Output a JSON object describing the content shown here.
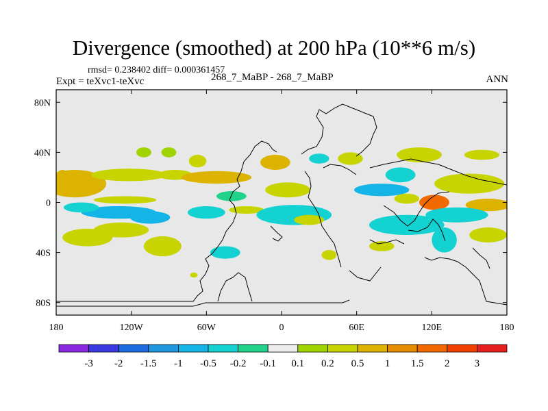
{
  "title": "Divergence (smoothed) at 200 hPa (10**6 m/s)",
  "stats": "rmsd= 0.238402 diff= 0.000361457",
  "expt": "Expt = teXvc1-teXvc",
  "cases": "268_7_MaBP - 268_7_MaBP",
  "season": "ANN",
  "colors": {
    "background": "#e8e8e8",
    "coast": "#000000",
    "palette": [
      "#8a2be2",
      "#3a3ae0",
      "#1e6ae0",
      "#1e96e0",
      "#14b4e6",
      "#14d2d2",
      "#20d28a",
      "#ececec",
      "#a0d400",
      "#c8d400",
      "#dcb400",
      "#e68c00",
      "#f06a00",
      "#f04000",
      "#e61e1e"
    ]
  },
  "chart_data": {
    "type": "contour-map",
    "projection": "cylindrical equidistant",
    "lon_range": [
      -180,
      180
    ],
    "lat_range": [
      -90,
      90
    ],
    "x_ticks": [
      "180",
      "120W",
      "60W",
      "0",
      "60E",
      "120E",
      "180"
    ],
    "x_tick_values": [
      -180,
      -120,
      -60,
      0,
      60,
      120,
      180
    ],
    "y_ticks": [
      "80N",
      "40N",
      "0",
      "40S",
      "80S"
    ],
    "y_tick_values": [
      80,
      40,
      0,
      -40,
      -80
    ],
    "colorbar_labels": [
      "-3",
      "-2",
      "-1.5",
      "-1",
      "-0.5",
      "-0.2",
      "-0.1",
      "0.1",
      "0.2",
      "0.5",
      "1",
      "1.5",
      "2",
      "3"
    ],
    "contour_levels": [
      -3,
      -2,
      -1.5,
      -1,
      -0.5,
      -0.2,
      -0.1,
      0.1,
      0.2,
      0.5,
      1,
      1.5,
      2,
      3
    ],
    "features": [
      {
        "lon": -165,
        "lat": 15,
        "rx": 25,
        "ry": 11,
        "value": 0.9
      },
      {
        "lon": -175,
        "lat": 18,
        "rx": 6,
        "ry": 8,
        "value": 0.6
      },
      {
        "lon": -122,
        "lat": 22,
        "rx": 30,
        "ry": 5,
        "value": 0.25
      },
      {
        "lon": -85,
        "lat": 22,
        "rx": 14,
        "ry": 4,
        "value": 0.3
      },
      {
        "lon": -67,
        "lat": 33,
        "rx": 7,
        "ry": 5,
        "value": 0.3
      },
      {
        "lon": -52,
        "lat": 20,
        "rx": 28,
        "ry": 5,
        "value": 0.55
      },
      {
        "lon": -110,
        "lat": 40,
        "rx": 6,
        "ry": 4,
        "value": 0.15
      },
      {
        "lon": -90,
        "lat": 40,
        "rx": 6,
        "ry": 4,
        "value": 0.15
      },
      {
        "lon": -155,
        "lat": -28,
        "rx": 20,
        "ry": 7,
        "value": 0.45
      },
      {
        "lon": -95,
        "lat": -35,
        "rx": 15,
        "ry": 8,
        "value": 0.25
      },
      {
        "lon": -128,
        "lat": -22,
        "rx": 22,
        "ry": 6,
        "value": 0.3
      },
      {
        "lon": -45,
        "lat": -40,
        "rx": 12,
        "ry": 5,
        "value": -0.3
      },
      {
        "lon": -70,
        "lat": -58,
        "rx": 3,
        "ry": 2,
        "value": 0.2
      },
      {
        "lon": -130,
        "lat": -8,
        "rx": 30,
        "ry": 5,
        "value": -0.8
      },
      {
        "lon": -105,
        "lat": -12,
        "rx": 16,
        "ry": 5,
        "value": -0.7
      },
      {
        "lon": -160,
        "lat": -4,
        "rx": 14,
        "ry": 4,
        "value": -0.3
      },
      {
        "lon": -125,
        "lat": 2,
        "rx": 25,
        "ry": 3,
        "value": 0.3
      },
      {
        "lon": -60,
        "lat": -8,
        "rx": 15,
        "ry": 5,
        "value": -0.3
      },
      {
        "lon": -28,
        "lat": -6,
        "rx": 14,
        "ry": 3,
        "value": 0.25
      },
      {
        "lon": -40,
        "lat": 5,
        "rx": 12,
        "ry": 4,
        "value": -0.2
      },
      {
        "lon": 10,
        "lat": -10,
        "rx": 30,
        "ry": 8,
        "value": -0.3
      },
      {
        "lon": 22,
        "lat": -14,
        "rx": 12,
        "ry": 4,
        "value": 0.3
      },
      {
        "lon": 5,
        "lat": 10,
        "rx": 18,
        "ry": 6,
        "value": 0.2
      },
      {
        "lon": -5,
        "lat": 32,
        "rx": 12,
        "ry": 6,
        "value": 0.5
      },
      {
        "lon": 30,
        "lat": 35,
        "rx": 8,
        "ry": 4,
        "value": -0.3
      },
      {
        "lon": 55,
        "lat": 35,
        "rx": 10,
        "ry": 5,
        "value": 0.2
      },
      {
        "lon": 80,
        "lat": 10,
        "rx": 22,
        "ry": 5,
        "value": -0.6
      },
      {
        "lon": 95,
        "lat": 22,
        "rx": 12,
        "ry": 6,
        "value": -0.4
      },
      {
        "lon": 110,
        "lat": 38,
        "rx": 18,
        "ry": 6,
        "value": 0.3
      },
      {
        "lon": 150,
        "lat": 15,
        "rx": 28,
        "ry": 8,
        "value": 0.45
      },
      {
        "lon": 122,
        "lat": 0,
        "rx": 12,
        "ry": 6,
        "value": 1.6
      },
      {
        "lon": 100,
        "lat": 3,
        "rx": 10,
        "ry": 4,
        "value": 0.4
      },
      {
        "lon": 165,
        "lat": -2,
        "rx": 18,
        "ry": 5,
        "value": 0.6
      },
      {
        "lon": 100,
        "lat": -18,
        "rx": 30,
        "ry": 8,
        "value": -0.35
      },
      {
        "lon": 140,
        "lat": -10,
        "rx": 25,
        "ry": 6,
        "value": -0.3
      },
      {
        "lon": 130,
        "lat": -30,
        "rx": 10,
        "ry": 10,
        "value": -0.25
      },
      {
        "lon": 165,
        "lat": -26,
        "rx": 15,
        "ry": 6,
        "value": 0.3
      },
      {
        "lon": 80,
        "lat": -35,
        "rx": 10,
        "ry": 4,
        "value": 0.2
      },
      {
        "lon": 38,
        "lat": -42,
        "rx": 6,
        "ry": 4,
        "value": 0.2
      },
      {
        "lon": 160,
        "lat": 38,
        "rx": 14,
        "ry": 4,
        "value": 0.25
      }
    ]
  }
}
